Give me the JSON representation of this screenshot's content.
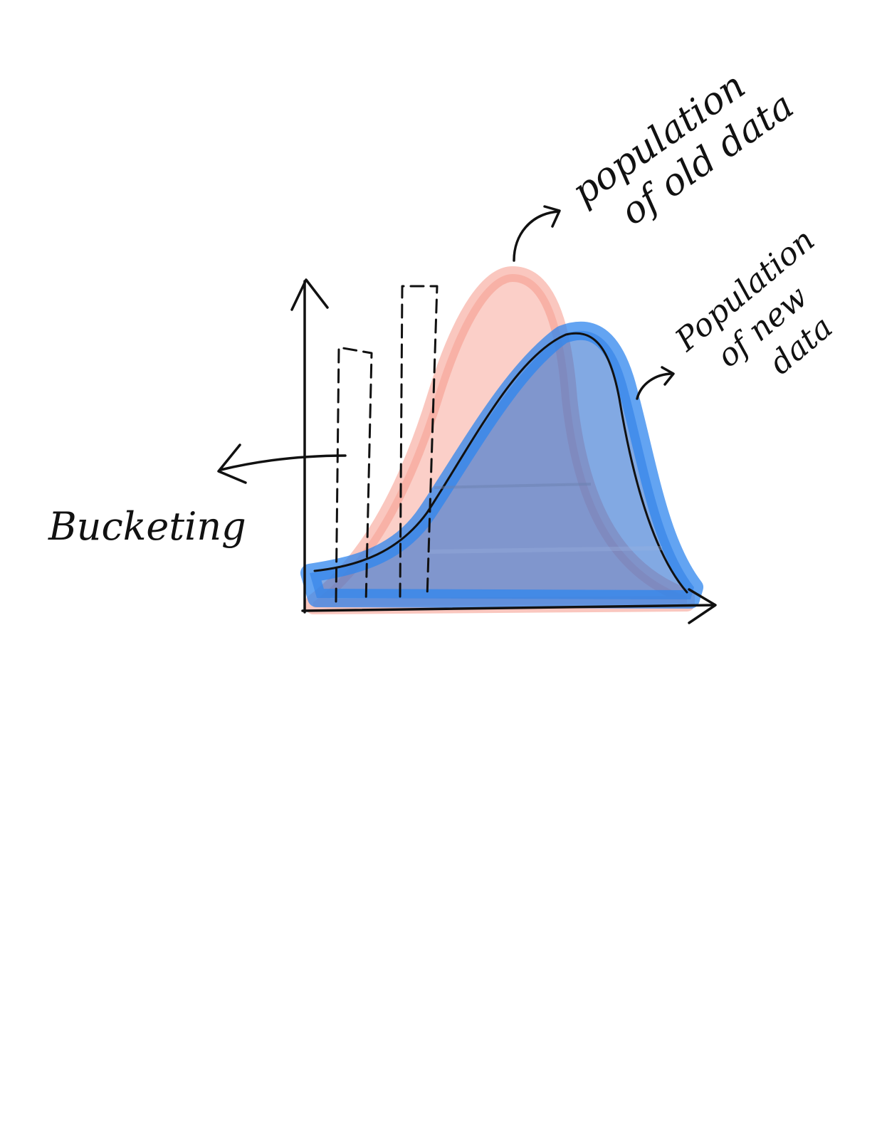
{
  "labels": {
    "old_population": [
      "population",
      "of old data"
    ],
    "new_population": [
      "Population",
      "of new",
      "data"
    ],
    "bucketing": "Bucketing"
  },
  "colors": {
    "old_population_fill": "#f7a79a",
    "new_population_fill": "#2f86ee",
    "new_population_outline": "#1f4f8f",
    "ink": "#111111",
    "background": "#ffffff"
  },
  "buckets": {
    "count": 2,
    "style": "dashed"
  }
}
